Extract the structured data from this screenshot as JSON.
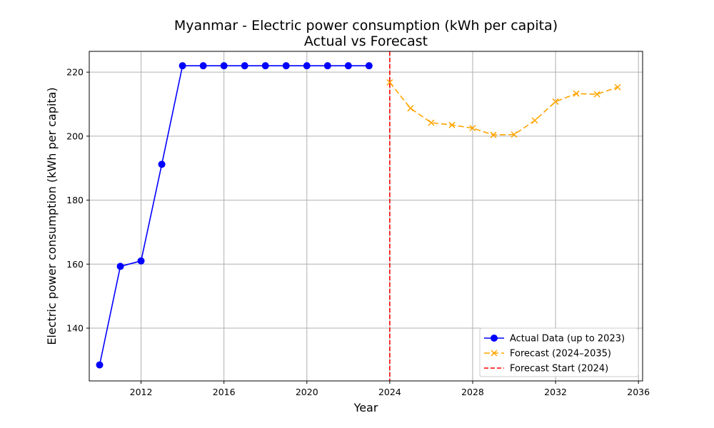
{
  "chart_data": {
    "type": "line",
    "title": "Myanmar - Electric power consumption (kWh per capita)",
    "subtitle": "Actual vs Forecast",
    "xlabel": "Year",
    "ylabel": "Electric power consumption (kWh per capita)",
    "xlim": [
      2009.5,
      2036.2
    ],
    "ylim": [
      123.5,
      226.5
    ],
    "xticks": [
      2012,
      2016,
      2020,
      2024,
      2028,
      2032,
      2036
    ],
    "yticks": [
      140,
      160,
      180,
      200,
      220
    ],
    "grid": true,
    "legend_position": "bottom-right",
    "series": [
      {
        "name": "Actual Data (up to 2023)",
        "color": "#0000ff",
        "line_style": "solid",
        "marker": "circle",
        "x": [
          2010,
          2011,
          2012,
          2013,
          2014,
          2015,
          2016,
          2017,
          2018,
          2019,
          2020,
          2021,
          2022,
          2023
        ],
        "y": [
          128.5,
          159.3,
          161.0,
          191.2,
          222.0,
          222.0,
          222.0,
          222.0,
          222.0,
          222.0,
          222.0,
          222.0,
          222.0,
          222.0
        ]
      },
      {
        "name": "Forecast (2024–2035)",
        "color": "#ffa500",
        "line_style": "dashed",
        "marker": "x",
        "x": [
          2024,
          2025,
          2026,
          2027,
          2028,
          2029,
          2030,
          2031,
          2032,
          2033,
          2034,
          2035
        ],
        "y": [
          216.8,
          208.7,
          204.2,
          203.5,
          202.5,
          200.4,
          200.5,
          204.9,
          210.8,
          213.3,
          213.1,
          215.3
        ]
      }
    ],
    "vline": {
      "name": "Forecast Start (2024)",
      "x": 2024,
      "color": "#ff0000",
      "line_style": "dashed"
    }
  }
}
